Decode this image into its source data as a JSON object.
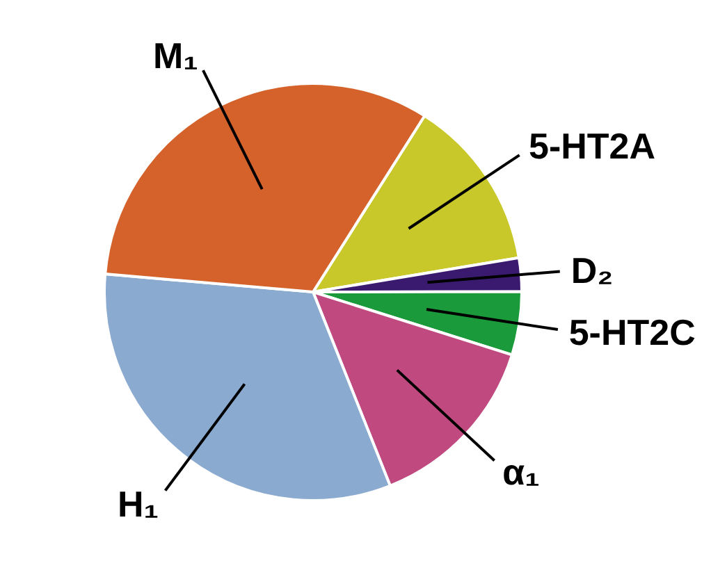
{
  "chart_data": {
    "type": "pie",
    "categories": [
      "5-HT2A",
      "D₂",
      "5-HT2C",
      "α₁",
      "H₁",
      "M₁"
    ],
    "values": [
      13.4,
      2.6,
      4.9,
      14.1,
      32.4,
      32.6
    ],
    "colors": [
      "#c8c82a",
      "#3a1a6e",
      "#1a9a3a",
      "#c04a80",
      "#8aaad0",
      "#d4622a"
    ]
  }
}
